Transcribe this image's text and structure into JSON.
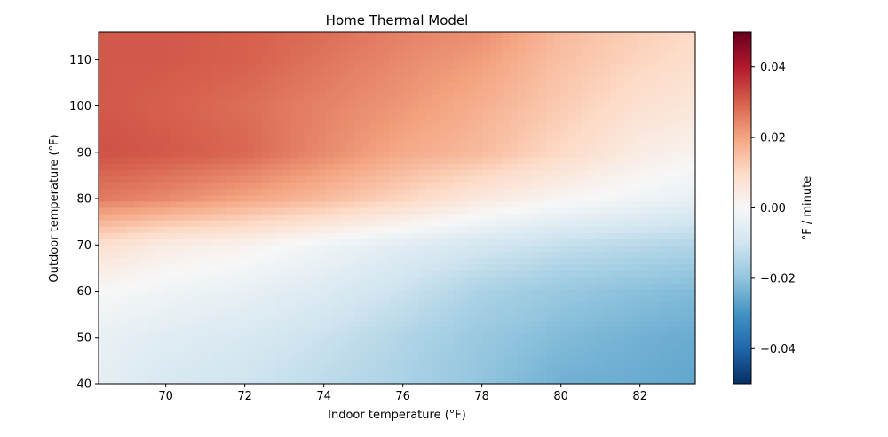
{
  "chart_data": {
    "type": "heatmap",
    "title": "Home Thermal Model",
    "xlabel": "Indoor temperature (°F)",
    "ylabel": "Outdoor temperature (°F)",
    "xlim": [
      68.3,
      83.4
    ],
    "ylim": [
      40,
      116
    ],
    "x_ticks": [
      70,
      72,
      74,
      76,
      78,
      80,
      82
    ],
    "x_tick_labels": [
      "70",
      "72",
      "74",
      "76",
      "78",
      "80",
      "82"
    ],
    "y_ticks": [
      40,
      50,
      60,
      70,
      80,
      90,
      100,
      110
    ],
    "y_tick_labels": [
      "40",
      "50",
      "60",
      "70",
      "80",
      "90",
      "100",
      "110"
    ],
    "colorbar": {
      "label": "°F / minute",
      "range": [
        -0.05,
        0.05
      ],
      "ticks": [
        -0.04,
        -0.02,
        0.0,
        0.02,
        0.04
      ],
      "tick_labels": [
        "−0.04",
        "−0.02",
        "0.00",
        "0.02",
        "0.04"
      ],
      "colormap": [
        "#053061",
        "#2166ac",
        "#4393c3",
        "#92c5de",
        "#d1e5f0",
        "#f7f7f7",
        "#fddbc7",
        "#f4a582",
        "#d6604d",
        "#b2182b",
        "#67001f"
      ]
    },
    "grid": false,
    "x": [
      68.5,
      70,
      72,
      74,
      76,
      78,
      80,
      82,
      83.3
    ],
    "y": [
      41,
      50,
      60,
      70,
      80,
      90,
      100,
      110,
      115
    ],
    "z": [
      [
        -0.005,
        -0.008,
        -0.01,
        -0.013,
        -0.016,
        -0.02,
        -0.024,
        -0.025,
        -0.026
      ],
      [
        -0.004,
        -0.006,
        -0.008,
        -0.011,
        -0.015,
        -0.019,
        -0.022,
        -0.024,
        -0.025
      ],
      [
        0.0,
        -0.002,
        -0.004,
        -0.007,
        -0.011,
        -0.016,
        -0.019,
        -0.021,
        -0.022
      ],
      [
        0.008,
        0.004,
        0.002,
        -0.002,
        -0.006,
        -0.009,
        -0.012,
        -0.014,
        -0.015
      ],
      [
        0.026,
        0.024,
        0.02,
        0.016,
        0.011,
        0.005,
        0.001,
        -0.002,
        -0.004
      ],
      [
        0.032,
        0.031,
        0.029,
        0.024,
        0.019,
        0.016,
        0.01,
        0.004,
        0.002
      ],
      [
        0.031,
        0.03,
        0.028,
        0.025,
        0.022,
        0.018,
        0.013,
        0.008,
        0.006
      ],
      [
        0.031,
        0.031,
        0.03,
        0.027,
        0.024,
        0.021,
        0.015,
        0.011,
        0.009
      ],
      [
        0.031,
        0.031,
        0.03,
        0.028,
        0.025,
        0.023,
        0.016,
        0.012,
        0.01
      ]
    ]
  }
}
